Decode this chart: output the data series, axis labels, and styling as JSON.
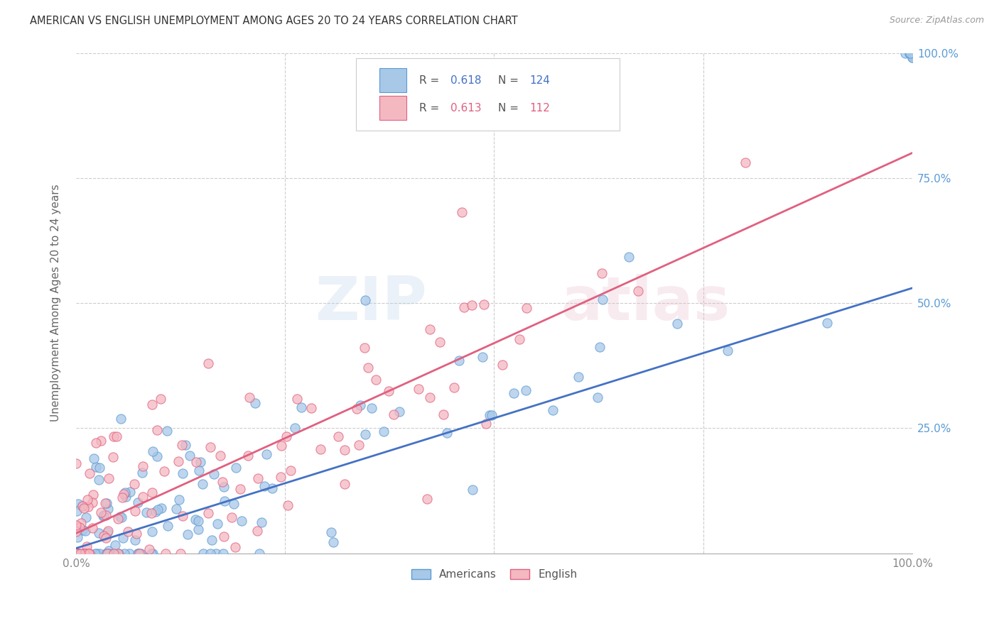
{
  "title": "AMERICAN VS ENGLISH UNEMPLOYMENT AMONG AGES 20 TO 24 YEARS CORRELATION CHART",
  "source": "Source: ZipAtlas.com",
  "ylabel": "Unemployment Among Ages 20 to 24 years",
  "xlim": [
    0,
    1.0
  ],
  "ylim": [
    0,
    1.0
  ],
  "americans_R": 0.618,
  "americans_N": 124,
  "english_R": 0.613,
  "english_N": 112,
  "color_americans_fill": "#a8c8e8",
  "color_americans_edge": "#5b9bd5",
  "color_english_fill": "#f4b8c1",
  "color_english_edge": "#e06080",
  "color_americans_line": "#4472c4",
  "color_english_line": "#e06080",
  "watermark_zip": "ZIP",
  "watermark_atlas": "atlas",
  "background_color": "#ffffff",
  "grid_color": "#cccccc",
  "ytick_color": "#5b9bd5",
  "xtick_color": "#888888"
}
